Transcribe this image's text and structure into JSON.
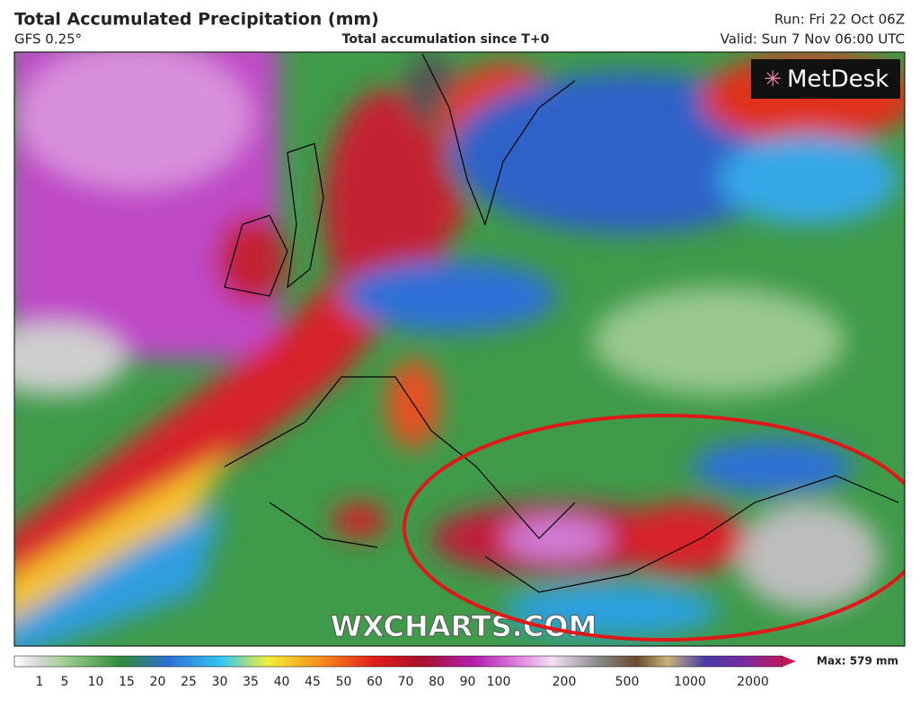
{
  "header": {
    "title": "Total Accumulated Precipitation (mm)",
    "model": "GFS 0.25°",
    "subtitle": "Total accumulation since T+0",
    "run": "Run: Fri 22 Oct 06Z",
    "valid": "Valid: Sun 7 Nov 06:00 UTC"
  },
  "map": {
    "logo": "MetDesk",
    "watermark": "WXCHARTS.COM"
  },
  "colorbar": {
    "labels": [
      1,
      5,
      10,
      15,
      20,
      25,
      30,
      35,
      40,
      45,
      50,
      60,
      70,
      80,
      90,
      100,
      200,
      500,
      1000,
      2000
    ],
    "max": "Max: 579 mm"
  }
}
